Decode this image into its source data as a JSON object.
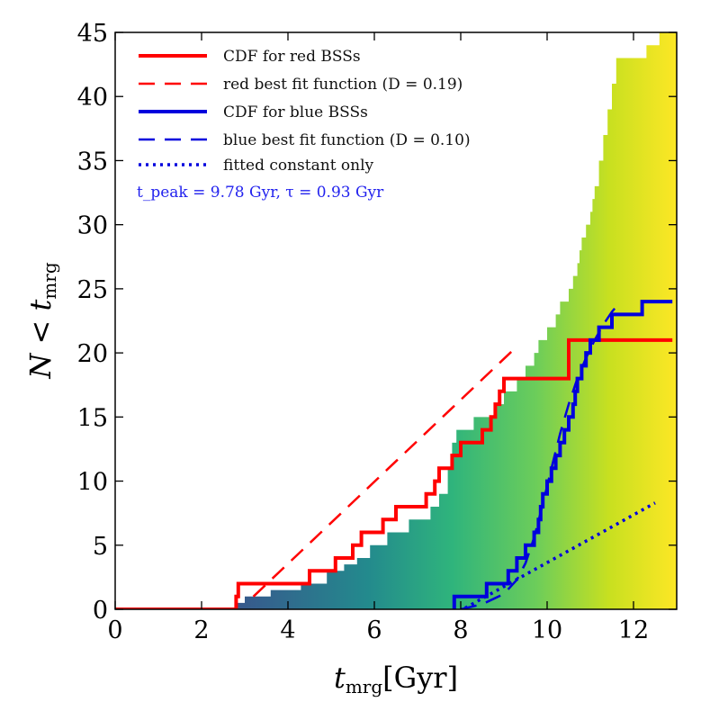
{
  "chart_data": {
    "type": "line",
    "xlabel": "t_mrg[Gyr]",
    "ylabel": "N < t_mrg",
    "xlim": [
      0,
      13
    ],
    "ylim": [
      0,
      45
    ],
    "xticks": [
      0,
      2,
      4,
      6,
      8,
      10,
      12
    ],
    "yticks": [
      0,
      5,
      10,
      15,
      20,
      25,
      30,
      35,
      40,
      45
    ],
    "grid": false,
    "legend_position": "top-left",
    "colors": {
      "red": "#ff0000",
      "blue": "#0000dd",
      "annotation": "#2222ee"
    },
    "annotation": "t_peak = 9.78 Gyr, τ = 0.93 Gyr",
    "background_histogram": {
      "colormap": "viridis (x-dependent)",
      "steps": [
        [
          2.8,
          0.5
        ],
        [
          3.0,
          1
        ],
        [
          3.6,
          1.5
        ],
        [
          4.3,
          2
        ],
        [
          4.9,
          3
        ],
        [
          5.3,
          3.5
        ],
        [
          5.6,
          4
        ],
        [
          5.9,
          5
        ],
        [
          6.3,
          6
        ],
        [
          6.8,
          7
        ],
        [
          7.3,
          8
        ],
        [
          7.5,
          9
        ],
        [
          7.7,
          11
        ],
        [
          7.8,
          13
        ],
        [
          7.9,
          14
        ],
        [
          8.3,
          15
        ],
        [
          8.8,
          16
        ],
        [
          9.0,
          17
        ],
        [
          9.3,
          18
        ],
        [
          9.5,
          19
        ],
        [
          9.7,
          20
        ],
        [
          9.8,
          21
        ],
        [
          10.0,
          22
        ],
        [
          10.2,
          23
        ],
        [
          10.3,
          24
        ],
        [
          10.5,
          25
        ],
        [
          10.6,
          26
        ],
        [
          10.7,
          27
        ],
        [
          10.75,
          28
        ],
        [
          10.8,
          29
        ],
        [
          10.9,
          30
        ],
        [
          11.0,
          31
        ],
        [
          11.05,
          32
        ],
        [
          11.1,
          33
        ],
        [
          11.2,
          35
        ],
        [
          11.3,
          37
        ],
        [
          11.4,
          39
        ],
        [
          11.5,
          41
        ],
        [
          11.6,
          43
        ],
        [
          12.3,
          44
        ],
        [
          12.6,
          45
        ],
        [
          12.9,
          45
        ]
      ]
    },
    "series": [
      {
        "name": "CDF for red BSSs",
        "style": "solid",
        "color": "#ff0000",
        "points": [
          [
            0,
            0
          ],
          [
            2.8,
            0
          ],
          [
            2.8,
            1
          ],
          [
            2.85,
            1
          ],
          [
            2.85,
            2
          ],
          [
            4.5,
            2
          ],
          [
            4.5,
            3
          ],
          [
            5.1,
            3
          ],
          [
            5.1,
            4
          ],
          [
            5.5,
            4
          ],
          [
            5.5,
            5
          ],
          [
            5.7,
            5
          ],
          [
            5.7,
            6
          ],
          [
            6.2,
            6
          ],
          [
            6.2,
            7
          ],
          [
            6.5,
            7
          ],
          [
            6.5,
            8
          ],
          [
            7.2,
            8
          ],
          [
            7.2,
            9
          ],
          [
            7.4,
            9
          ],
          [
            7.4,
            10
          ],
          [
            7.5,
            10
          ],
          [
            7.5,
            11
          ],
          [
            7.8,
            11
          ],
          [
            7.8,
            12
          ],
          [
            8.0,
            12
          ],
          [
            8.0,
            13
          ],
          [
            8.5,
            13
          ],
          [
            8.5,
            14
          ],
          [
            8.7,
            14
          ],
          [
            8.7,
            15
          ],
          [
            8.8,
            15
          ],
          [
            8.8,
            16
          ],
          [
            8.9,
            16
          ],
          [
            8.9,
            17
          ],
          [
            9.0,
            17
          ],
          [
            9.0,
            18
          ],
          [
            10.5,
            18
          ],
          [
            10.5,
            21
          ],
          [
            12.9,
            21
          ]
        ]
      },
      {
        "name": "red best fit function (D = 0.19)",
        "style": "dashed",
        "color": "#ff0000",
        "points": [
          [
            3.2,
            1
          ],
          [
            9.3,
            20.5
          ]
        ]
      },
      {
        "name": "CDF for blue BSSs",
        "style": "solid",
        "color": "#0000dd",
        "points": [
          [
            7.85,
            0
          ],
          [
            7.85,
            1
          ],
          [
            8.6,
            1
          ],
          [
            8.6,
            2
          ],
          [
            9.1,
            2
          ],
          [
            9.1,
            3
          ],
          [
            9.3,
            3
          ],
          [
            9.3,
            4
          ],
          [
            9.5,
            4
          ],
          [
            9.5,
            5
          ],
          [
            9.7,
            5
          ],
          [
            9.7,
            6
          ],
          [
            9.8,
            6
          ],
          [
            9.8,
            7
          ],
          [
            9.85,
            7
          ],
          [
            9.85,
            8
          ],
          [
            9.9,
            8
          ],
          [
            9.9,
            9
          ],
          [
            10.0,
            9
          ],
          [
            10.0,
            10
          ],
          [
            10.1,
            10
          ],
          [
            10.1,
            11
          ],
          [
            10.2,
            11
          ],
          [
            10.2,
            12
          ],
          [
            10.3,
            12
          ],
          [
            10.3,
            13
          ],
          [
            10.4,
            13
          ],
          [
            10.4,
            14
          ],
          [
            10.5,
            14
          ],
          [
            10.5,
            15
          ],
          [
            10.6,
            15
          ],
          [
            10.6,
            16
          ],
          [
            10.65,
            16
          ],
          [
            10.65,
            17
          ],
          [
            10.7,
            17
          ],
          [
            10.7,
            18
          ],
          [
            10.8,
            18
          ],
          [
            10.8,
            19
          ],
          [
            10.9,
            19
          ],
          [
            10.9,
            20
          ],
          [
            11.0,
            20
          ],
          [
            11.0,
            21
          ],
          [
            11.2,
            21
          ],
          [
            11.2,
            22
          ],
          [
            11.5,
            22
          ],
          [
            11.5,
            23
          ],
          [
            12.2,
            23
          ],
          [
            12.2,
            24
          ],
          [
            12.9,
            24
          ]
        ]
      },
      {
        "name": "blue best fit function (D = 0.10)",
        "style": "dashed",
        "color": "#0000dd",
        "points": [
          [
            8.0,
            0
          ],
          [
            8.5,
            0.4
          ],
          [
            9.0,
            1.2
          ],
          [
            9.3,
            2.3
          ],
          [
            9.5,
            3.6
          ],
          [
            9.7,
            5.6
          ],
          [
            9.9,
            8.2
          ],
          [
            10.1,
            11.0
          ],
          [
            10.3,
            13.7
          ],
          [
            10.5,
            16.0
          ],
          [
            10.7,
            18.0
          ],
          [
            10.9,
            19.6
          ],
          [
            11.1,
            21.0
          ],
          [
            11.3,
            22.2
          ],
          [
            11.5,
            23.2
          ],
          [
            11.7,
            24.0
          ]
        ]
      },
      {
        "name": "fitted constant only",
        "style": "dotted",
        "color": "#0000dd",
        "points": [
          [
            8.1,
            0.1
          ],
          [
            12.5,
            8.3
          ]
        ]
      }
    ]
  }
}
